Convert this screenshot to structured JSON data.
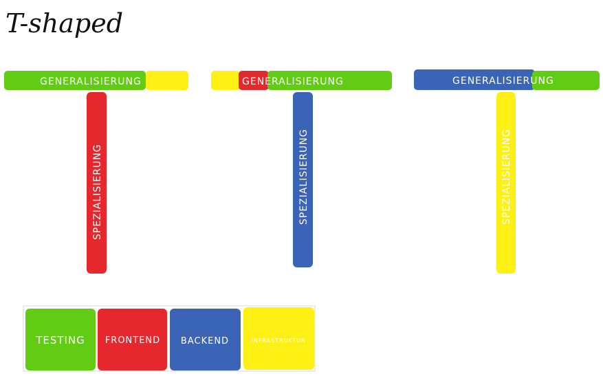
{
  "title": "T-shaped",
  "colors": {
    "green": "#62cc14",
    "red": "#e5282e",
    "blue": "#3b64b6",
    "yellow": "#fef014",
    "text": "#ffffff",
    "title": "#111111"
  },
  "t_shapes": [
    {
      "generalization_label": "GENERALISIERUNG",
      "generalization_color": "green",
      "specialization_label": "SPEZIALISIERUNG",
      "specialization_color": "red"
    },
    {
      "generalization_label": "GENERALISIERUNG",
      "generalization_color": "green",
      "specialization_label": "SPEZIALISIERUNG",
      "specialization_color": "blue"
    },
    {
      "generalization_label": "GENERALISIERUNG",
      "generalization_color": "blue",
      "specialization_label": "SPEZIALISIERUNG",
      "specialization_color": "yellow"
    }
  ],
  "legend": [
    {
      "label": "TESTING",
      "color": "green"
    },
    {
      "label": "FRONTEND",
      "color": "red"
    },
    {
      "label": "BACKEND",
      "color": "blue"
    },
    {
      "label": "INFRASTRUKTUR",
      "color": "yellow"
    }
  ]
}
